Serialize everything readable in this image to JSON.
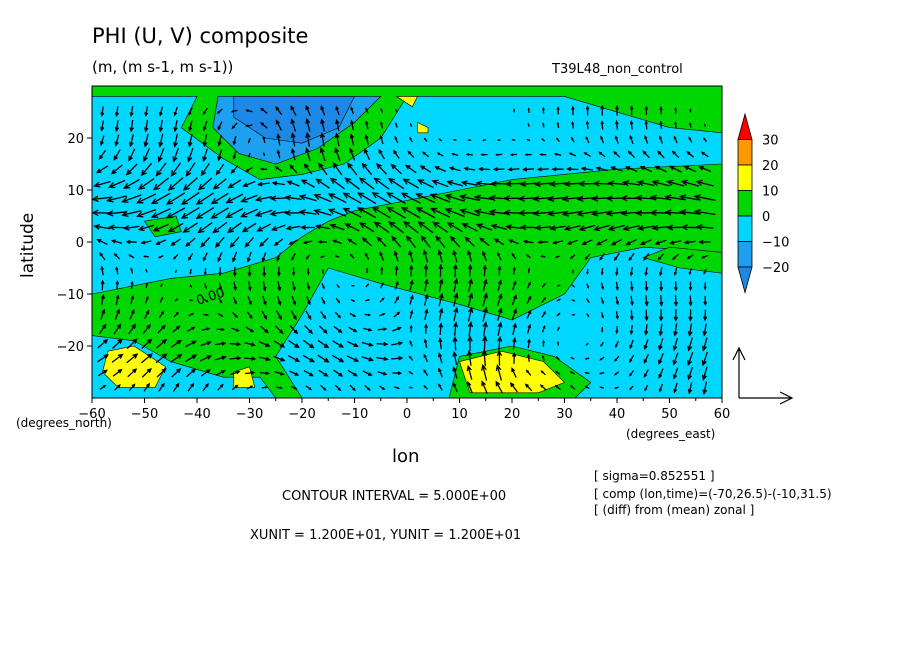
{
  "title": "PHI (U, V) composite",
  "units": "(m, (m s-1, m s-1))",
  "run_label": "T39L48_non_control",
  "xlabel": "lon",
  "ylabel": "latitude",
  "x_unit_label": "(degrees_east)",
  "y_unit_label": "(degrees_north)",
  "contour_interval": "CONTOUR INTERVAL = 5.000E+00",
  "vector_units": "XUNIT = 1.200E+01, YUNIT = 1.200E+01",
  "info": [
    "[ sigma=0.852551 ]",
    "[ comp (lon,time)=(-70,26.5)-(-10,31.5)",
    "[ (diff) from (mean) zonal ]"
  ],
  "contour_label": "0.00",
  "colors": {
    "lt_m20": "#1e88e6",
    "m20_m10": "#1ea0f0",
    "m10_0": "#00d7ff",
    "0_10": "#00d700",
    "10_20": "#ffff00",
    "20_30": "#ff9900",
    "gt_30": "#ff0000",
    "arrow": "#000000"
  },
  "chart_data": {
    "type": "filled-contour with vector field",
    "x": {
      "label": "lon",
      "range": [
        -60,
        60
      ],
      "ticks": [
        -60,
        -50,
        -40,
        -30,
        -20,
        -10,
        0,
        10,
        20,
        30,
        40,
        50,
        60
      ]
    },
    "y": {
      "label": "latitude",
      "range": [
        -30,
        30
      ],
      "ticks": [
        -20,
        -10,
        0,
        10,
        20
      ]
    },
    "colorbar": {
      "levels": [
        -20,
        -10,
        0,
        10,
        20,
        30
      ],
      "bins": [
        {
          "range": "< -20",
          "color": "#1e88e6"
        },
        {
          "range": "-20 to -10",
          "color": "#1ea0f0"
        },
        {
          "range": "-10 to 0",
          "color": "#00d7ff"
        },
        {
          "range": "0 to 10",
          "color": "#00d700"
        },
        {
          "range": "10 to 20",
          "color": "#ffff00"
        },
        {
          "range": "20 to 30",
          "color": "#ff9900"
        },
        {
          "range": "> 30",
          "color": "#ff0000"
        }
      ]
    },
    "regions": [
      {
        "level": "m10_0",
        "polygon": [
          [
            -60,
            28
          ],
          [
            -40,
            28
          ],
          [
            -43,
            22
          ],
          [
            -35,
            16
          ],
          [
            -28,
            12
          ],
          [
            -20,
            13
          ],
          [
            -12,
            15
          ],
          [
            -5,
            20
          ],
          [
            0,
            28
          ],
          [
            30,
            28
          ],
          [
            50,
            22
          ],
          [
            60,
            21
          ],
          [
            60,
            15
          ],
          [
            40,
            14
          ],
          [
            20,
            12
          ],
          [
            10,
            10
          ],
          [
            0,
            8
          ],
          [
            -10,
            6
          ],
          [
            -15,
            4
          ],
          [
            -20,
            1
          ],
          [
            -25,
            -3
          ],
          [
            -35,
            -6
          ],
          [
            -45,
            -7
          ],
          [
            -55,
            -9
          ],
          [
            -60,
            -10
          ]
        ]
      },
      {
        "level": "m20_m10",
        "polygon": [
          [
            -36,
            28
          ],
          [
            -5,
            28
          ],
          [
            -10,
            23
          ],
          [
            -17,
            18
          ],
          [
            -25,
            15
          ],
          [
            -32,
            17
          ],
          [
            -37,
            22
          ]
        ]
      },
      {
        "level": "lt_m20",
        "polygon": [
          [
            -33,
            28
          ],
          [
            -10,
            28
          ],
          [
            -13,
            22
          ],
          [
            -20,
            19
          ],
          [
            -27,
            20
          ],
          [
            -33,
            24
          ]
        ]
      },
      {
        "level": "m10_0",
        "polygon": [
          [
            -15,
            -5
          ],
          [
            -5,
            -8
          ],
          [
            10,
            -12
          ],
          [
            20,
            -15
          ],
          [
            30,
            -10
          ],
          [
            35,
            -3
          ],
          [
            45,
            -1
          ],
          [
            60,
            -2
          ],
          [
            60,
            -30
          ],
          [
            -20,
            -30
          ],
          [
            -25,
            -22
          ],
          [
            -20,
            -14
          ]
        ]
      },
      {
        "level": "m10_0",
        "polygon": [
          [
            -60,
            -18
          ],
          [
            -52,
            -19
          ],
          [
            -45,
            -23
          ],
          [
            -35,
            -26
          ],
          [
            -28,
            -26
          ],
          [
            -25,
            -30
          ],
          [
            -60,
            -30
          ]
        ]
      },
      {
        "level": "0_10",
        "polygon": [
          [
            -50,
            4
          ],
          [
            -44,
            5
          ],
          [
            -43,
            2
          ],
          [
            -48,
            1
          ]
        ]
      },
      {
        "level": "0_10",
        "polygon": [
          [
            45,
            -3
          ],
          [
            52,
            -5
          ],
          [
            60,
            -6
          ],
          [
            60,
            -2
          ],
          [
            50,
            -1
          ]
        ]
      },
      {
        "level": "0_10",
        "polygon": [
          [
            10,
            -22
          ],
          [
            20,
            -20
          ],
          [
            28,
            -22
          ],
          [
            35,
            -27
          ],
          [
            32,
            -30
          ],
          [
            8,
            -30
          ]
        ]
      },
      {
        "level": "10_20",
        "polygon": [
          [
            -57,
            -21
          ],
          [
            -52,
            -20
          ],
          [
            -46,
            -24
          ],
          [
            -48,
            -28
          ],
          [
            -55,
            -28
          ],
          [
            -58,
            -25
          ]
        ]
      },
      {
        "level": "10_20",
        "polygon": [
          [
            -33,
            -25
          ],
          [
            -30,
            -24
          ],
          [
            -29,
            -28
          ],
          [
            -33,
            -28
          ]
        ]
      },
      {
        "level": "10_20",
        "polygon": [
          [
            10,
            -23
          ],
          [
            18,
            -21
          ],
          [
            26,
            -23
          ],
          [
            30,
            -27
          ],
          [
            25,
            -29
          ],
          [
            12,
            -29
          ]
        ]
      },
      {
        "level": "10_20",
        "polygon": [
          [
            2,
            23
          ],
          [
            4,
            22
          ],
          [
            4,
            21
          ],
          [
            2,
            21
          ]
        ]
      },
      {
        "level": "10_20",
        "polygon": [
          [
            -2,
            28
          ],
          [
            2,
            28
          ],
          [
            1,
            26
          ]
        ]
      }
    ],
    "vector_field": {
      "x_unit": 12,
      "y_unit": 12,
      "flow": "cyclonic circulation centred near (-28, 20); strong easterly trades between 0 and 15N; anticyclone near (20, -25)"
    }
  }
}
